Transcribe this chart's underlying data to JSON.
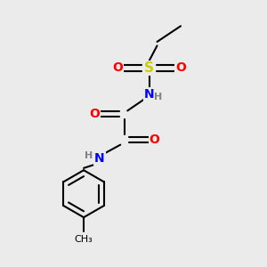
{
  "background_color": "#ebebeb",
  "bond_color": "#000000",
  "atom_colors": {
    "O": "#ff0000",
    "S": "#cccc00",
    "N": "#0000ff",
    "C": "#000000",
    "H": "#808080"
  },
  "figsize": [
    3.0,
    3.0
  ],
  "dpi": 100
}
